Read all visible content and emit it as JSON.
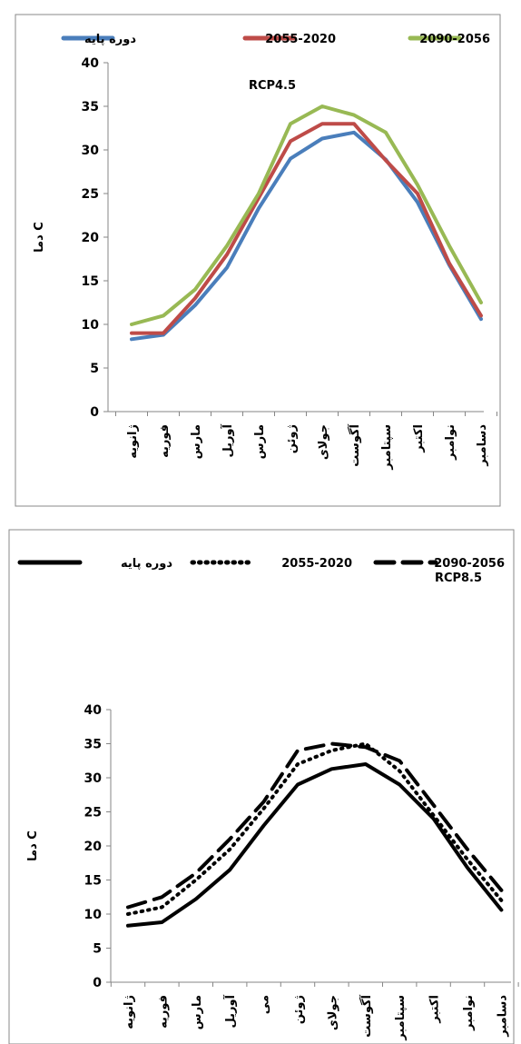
{
  "chart_data": [
    {
      "type": "line",
      "annotation": "RCP4.5",
      "ylabel": "دما C",
      "ylim": [
        0,
        40
      ],
      "yticks": [
        0,
        5,
        10,
        15,
        20,
        25,
        30,
        35,
        40
      ],
      "categories": [
        "ژانویه",
        "فوریه",
        "مارس",
        "آوریل",
        "مارس",
        "ژوئن",
        "جولای",
        "آگوست",
        "سپتامبر",
        "اکتبر",
        "نوامبر",
        "دسامبر"
      ],
      "legend_position": "top",
      "series": [
        {
          "name": "دوره پایه",
          "color": "#4a7ebb",
          "style": "solid",
          "values": [
            8.3,
            8.8,
            12.2,
            16.5,
            23.3,
            29.0,
            31.3,
            32.0,
            28.9,
            24.0,
            16.8,
            10.6
          ]
        },
        {
          "name": "2055-2020",
          "color": "#be4b48",
          "style": "solid",
          "values": [
            9.0,
            9.0,
            13.0,
            18.0,
            24.5,
            31.0,
            33.0,
            33.0,
            28.8,
            25.0,
            17.0,
            11.0
          ]
        },
        {
          "name": "2090-2056",
          "color": "#98b954",
          "style": "solid",
          "values": [
            10.0,
            11.0,
            14.0,
            19.0,
            25.0,
            33.0,
            35.0,
            34.0,
            32.0,
            26.0,
            19.0,
            12.5
          ]
        }
      ]
    },
    {
      "type": "line",
      "annotation": "RCP8.5",
      "ylabel": "دما C",
      "ylim": [
        0,
        40
      ],
      "yticks": [
        0,
        5,
        10,
        15,
        20,
        25,
        30,
        35,
        40
      ],
      "categories": [
        "ژانویه",
        "فوریه",
        "مارس",
        "آوریل",
        "می",
        "ژوئن",
        "جولای",
        "آگوست",
        "سپتامبر",
        "اکتبر",
        "نوامبر",
        "دسامبر"
      ],
      "legend_position": "top",
      "series": [
        {
          "name": "دوره پایه",
          "color": "#000000",
          "style": "solid",
          "values": [
            8.3,
            8.8,
            12.2,
            16.5,
            23.0,
            29.0,
            31.3,
            32.0,
            29.0,
            24.0,
            16.8,
            10.6
          ]
        },
        {
          "name": "2055-2020",
          "color": "#000000",
          "style": "dotted",
          "values": [
            10.0,
            11.0,
            15.0,
            19.5,
            25.5,
            32.0,
            34.0,
            35.0,
            31.0,
            24.5,
            18.0,
            12.0
          ]
        },
        {
          "name": "2090-2056",
          "color": "#000000",
          "style": "dashed",
          "values": [
            11.0,
            12.5,
            16.0,
            21.0,
            26.5,
            34.0,
            35.0,
            34.5,
            32.5,
            26.0,
            19.5,
            13.5
          ]
        }
      ]
    }
  ]
}
